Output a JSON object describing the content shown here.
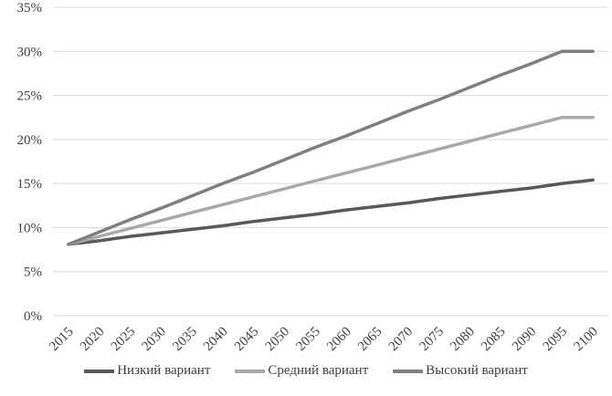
{
  "figure": {
    "background": "#ffffff",
    "gridline_color": "#d9d9d9",
    "label_color": "#404040"
  },
  "chart_data": {
    "type": "line",
    "title": "",
    "xlabel": "",
    "ylabel": "",
    "categories": [
      "2015",
      "2020",
      "2025",
      "2030",
      "2035",
      "2040",
      "2045",
      "2050",
      "2055",
      "2060",
      "2065",
      "2070",
      "2075",
      "2080",
      "2085",
      "2090",
      "2095",
      "2100"
    ],
    "series": [
      {
        "name": "Низкий вариант",
        "color": "#595959",
        "values": [
          8.1,
          8.5,
          9.0,
          9.4,
          9.8,
          10.2,
          10.7,
          11.1,
          11.5,
          12.0,
          12.4,
          12.8,
          13.3,
          13.7,
          14.1,
          14.5,
          15.0,
          15.4
        ]
      },
      {
        "name": "Средний вариант",
        "color": "#a9a9a9",
        "values": [
          8.1,
          9.0,
          9.9,
          10.8,
          11.7,
          12.6,
          13.5,
          14.4,
          15.3,
          16.2,
          17.1,
          18.0,
          18.9,
          19.8,
          20.7,
          21.6,
          22.5,
          22.5
        ]
      },
      {
        "name": "Высокий вариант",
        "color": "#7f7f7f",
        "values": [
          8.1,
          9.5,
          10.9,
          12.2,
          13.6,
          15.0,
          16.3,
          17.7,
          19.1,
          20.4,
          21.8,
          23.2,
          24.5,
          25.9,
          27.3,
          28.6,
          30.0,
          30.0
        ]
      }
    ],
    "ylim": [
      0,
      35
    ],
    "y_tick_step": 5,
    "y_tick_labels": [
      "0%",
      "5%",
      "10%",
      "15%",
      "20%",
      "25%",
      "30%",
      "35%"
    ],
    "grid": true,
    "x_label_rotation": -45,
    "legend_position": "bottom"
  }
}
